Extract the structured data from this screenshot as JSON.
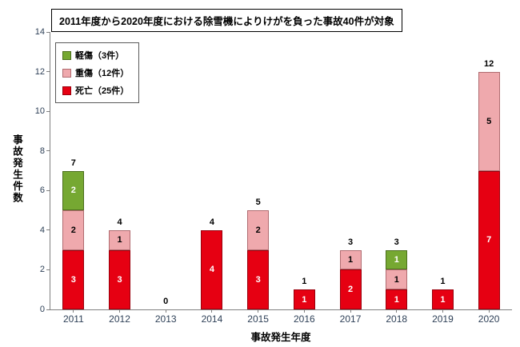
{
  "title": "2011年度から2020年度における除雪機によりけがを負った事故40件が対象",
  "legend": [
    {
      "key": "minor",
      "label": "軽傷（3件）",
      "color": "#76A832",
      "border_color": "#4C6F1D"
    },
    {
      "key": "serious",
      "label": "重傷（12件）",
      "color": "#EFA9AD",
      "border_color": "#B06B70"
    },
    {
      "key": "fatal",
      "label": "死亡（25件）",
      "color": "#E60012",
      "border_color": "#99000C"
    }
  ],
  "chart_data": {
    "type": "bar",
    "stacked": true,
    "title": "2011年度から2020年度における除雪機によりけがを負った事故40件が対象",
    "categories": [
      "2011",
      "2012",
      "2013",
      "2014",
      "2015",
      "2016",
      "2017",
      "2018",
      "2019",
      "2020"
    ],
    "series": [
      {
        "key": "fatal",
        "name": "死亡（25件）",
        "color": "#E60012",
        "border_color": "#99000C",
        "label_color": "#FFFFFF",
        "values": [
          3,
          3,
          0,
          4,
          3,
          1,
          2,
          1,
          1,
          7
        ]
      },
      {
        "key": "serious",
        "name": "重傷（12件）",
        "color": "#EFA9AD",
        "border_color": "#B06B70",
        "label_color": "#000000",
        "values": [
          2,
          1,
          0,
          0,
          2,
          0,
          1,
          1,
          0,
          5
        ]
      },
      {
        "key": "minor",
        "name": "軽傷（3件）",
        "color": "#76A832",
        "border_color": "#4C6F1D",
        "label_color": "#FFFFFF",
        "values": [
          2,
          0,
          0,
          0,
          0,
          0,
          0,
          1,
          0,
          0
        ]
      }
    ],
    "totals": [
      7,
      4,
      0,
      4,
      5,
      1,
      3,
      3,
      1,
      12
    ],
    "xlabel": "事故発生年度",
    "ylabel": "事故発生件数",
    "ylim": [
      0,
      14
    ],
    "yticks": [
      0,
      2,
      4,
      6,
      8,
      10,
      12,
      14
    ],
    "grid": false,
    "legend_position": "top-left",
    "axis_label_color": "#2E4057",
    "total_label_color": "#000000"
  }
}
